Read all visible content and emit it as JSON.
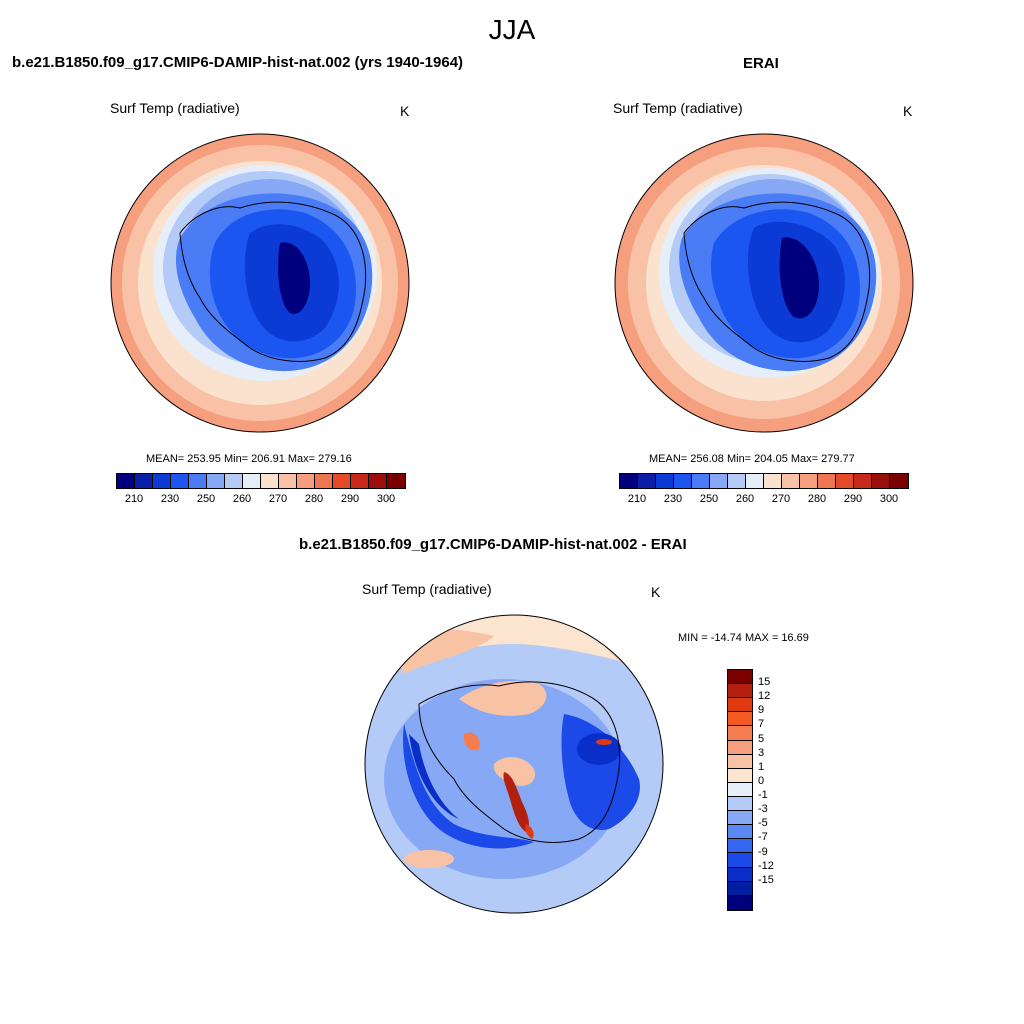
{
  "figure": {
    "title": "JJA"
  },
  "panels": {
    "model": {
      "title": "b.e21.B1850.f09_g17.CMIP6-DAMIP-hist-nat.002 (yrs 1940-1964)",
      "variable": "Surf Temp (radiative)",
      "units": "K",
      "stats": "MEAN= 253.95  Min= 206.91  Max= 279.16"
    },
    "obs": {
      "title": "ERAI",
      "variable": "Surf Temp (radiative)",
      "units": "K",
      "stats": "MEAN= 256.08  Min= 204.05  Max= 279.77"
    },
    "diff": {
      "title": "b.e21.B1850.f09_g17.CMIP6-DAMIP-hist-nat.002 - ERAI",
      "variable": "Surf Temp (radiative)",
      "units": "K",
      "stats": "MIN = -14.74 MAX =  16.69"
    }
  },
  "colorbars": {
    "absolute": {
      "colors": [
        "#00007f",
        "#0a1fa8",
        "#0b3bd4",
        "#1b56f0",
        "#4a7cf5",
        "#86a8f5",
        "#b4cbf7",
        "#e6eefa",
        "#fbe2cf",
        "#f9c2a6",
        "#f59f7e",
        "#ef7652",
        "#e44a28",
        "#c9291a",
        "#9a0f0a",
        "#7a0000"
      ],
      "tick_labels": [
        "210",
        "230",
        "250",
        "260",
        "270",
        "280",
        "290",
        "300"
      ]
    },
    "difference": {
      "colors": [
        "#7a0000",
        "#b3200f",
        "#e03a12",
        "#f55a22",
        "#f57c4e",
        "#f59f7e",
        "#f8c2a4",
        "#fbe4d0",
        "#e6eefa",
        "#b4cbf7",
        "#86a8f5",
        "#5b88f2",
        "#3466ee",
        "#1b4ae8",
        "#0a2fc9",
        "#001fa0",
        "#00007f"
      ],
      "tick_labels": [
        "15",
        "12",
        "9",
        "7",
        "5",
        "3",
        "1",
        "0",
        "-1",
        "-3",
        "-5",
        "-7",
        "-9",
        "-12",
        "-15"
      ]
    }
  },
  "colors": {
    "ocean_warm": "#f9c2a6",
    "ice_light": "#b4cbf7",
    "continent": "#1b4ae8",
    "plateau": "#00007f",
    "diff_bg": "#86a8f5"
  }
}
